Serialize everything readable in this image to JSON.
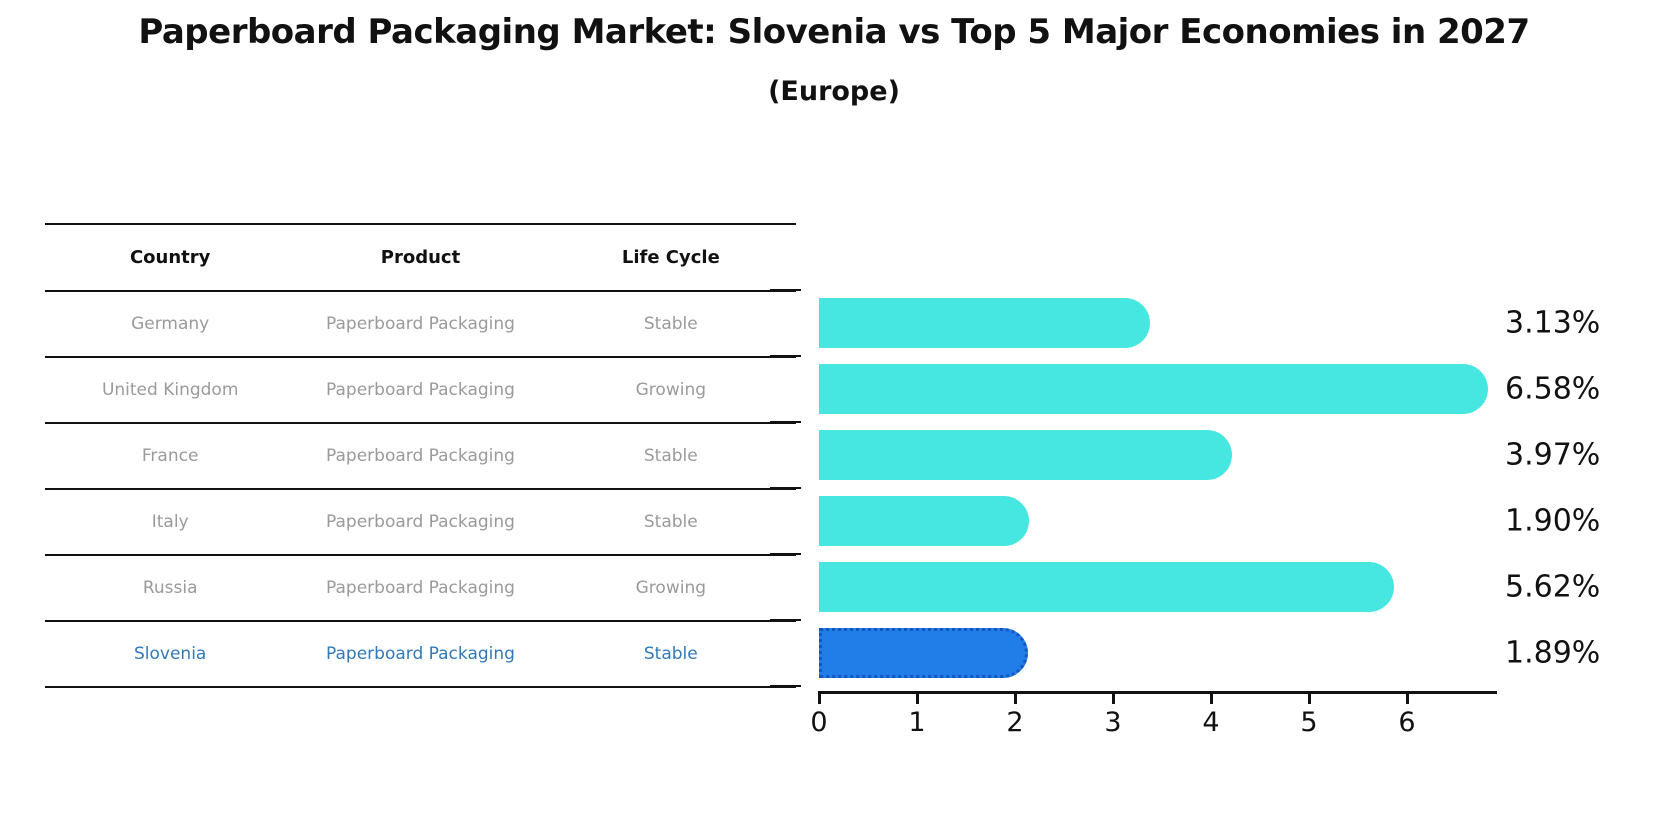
{
  "title": "Paperboard Packaging Market: Slovenia vs Top 5 Major Economies in 2027",
  "subtitle": "(Europe)",
  "table": {
    "headers": [
      "Country",
      "Product",
      "Life Cycle"
    ],
    "rows": [
      {
        "country": "Germany",
        "product": "Paperboard Packaging",
        "life_cycle": "Stable"
      },
      {
        "country": "United Kingdom",
        "product": "Paperboard Packaging",
        "life_cycle": "Growing"
      },
      {
        "country": "France",
        "product": "Paperboard Packaging",
        "life_cycle": "Stable"
      },
      {
        "country": "Italy",
        "product": "Paperboard Packaging",
        "life_cycle": "Stable"
      },
      {
        "country": "Russia",
        "product": "Paperboard Packaging",
        "life_cycle": "Growing"
      },
      {
        "country": "Slovenia",
        "product": "Paperboard Packaging",
        "life_cycle": "Stable"
      }
    ]
  },
  "chart_data": {
    "type": "bar",
    "orientation": "horizontal",
    "title": "Paperboard Packaging Market: Slovenia vs Top 5 Major Economies in 2027 (Europe)",
    "categories": [
      "Germany",
      "United Kingdom",
      "France",
      "Italy",
      "Russia",
      "Slovenia"
    ],
    "values": [
      3.13,
      6.58,
      3.97,
      1.9,
      5.62,
      1.89
    ],
    "value_labels": [
      "3.13%",
      "6.58%",
      "3.97%",
      "1.90%",
      "5.62%",
      "1.89%"
    ],
    "xlabel": "",
    "ylabel": "",
    "xlim": [
      0,
      6.9
    ],
    "xticks": [
      "0",
      "1",
      "2",
      "3",
      "4",
      "5",
      "6"
    ],
    "grid": false,
    "legend": null,
    "bar_color": "#45E7E0",
    "highlight_color": "#217EE8",
    "highlight_index": 5,
    "highlight_category": "Slovenia"
  },
  "colors": {
    "bar_cyan": "#45E7E0",
    "bar_blue": "#217EE8",
    "highlight_dotted_border": "#1456BC",
    "table_text_gray": "#9a9a9a",
    "highlight_text_blue": "#3179B8",
    "text_black": "#111111",
    "background": "#ffffff"
  }
}
